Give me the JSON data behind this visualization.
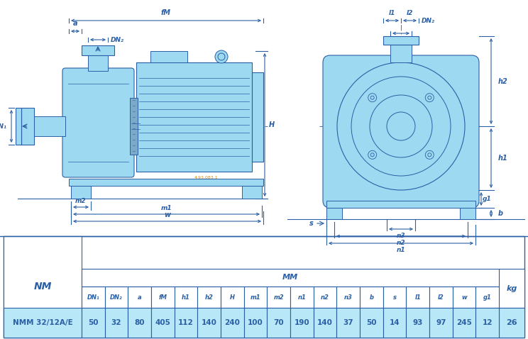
{
  "bg_color": "#ffffff",
  "blue_light": "#9DD9F0",
  "line_color": "#2B5FA5",
  "text_color": "#2B5FA5",
  "orange_text": "#D4860A",
  "table_row_bg": "#B8E8F8",
  "table_border": "#2B5FA5",
  "col_names": [
    "DN₁",
    "DN₂",
    "a",
    "fM",
    "h1",
    "h2",
    "H",
    "m1",
    "m2",
    "n1",
    "n2",
    "n3",
    "b",
    "s",
    "l1",
    "l2",
    "w",
    "g1"
  ],
  "col_values": [
    "50",
    "32",
    "80",
    "405",
    "112",
    "140",
    "240",
    "100",
    "70",
    "190",
    "140",
    "37",
    "50",
    "14",
    "93",
    "97",
    "245",
    "12"
  ],
  "nm_label": "NM",
  "pump_label": "NMM 32/12A/E",
  "mm_label": "MM",
  "kg_label": "kg",
  "kg_value": "26",
  "code_label": "4.93.083.1"
}
